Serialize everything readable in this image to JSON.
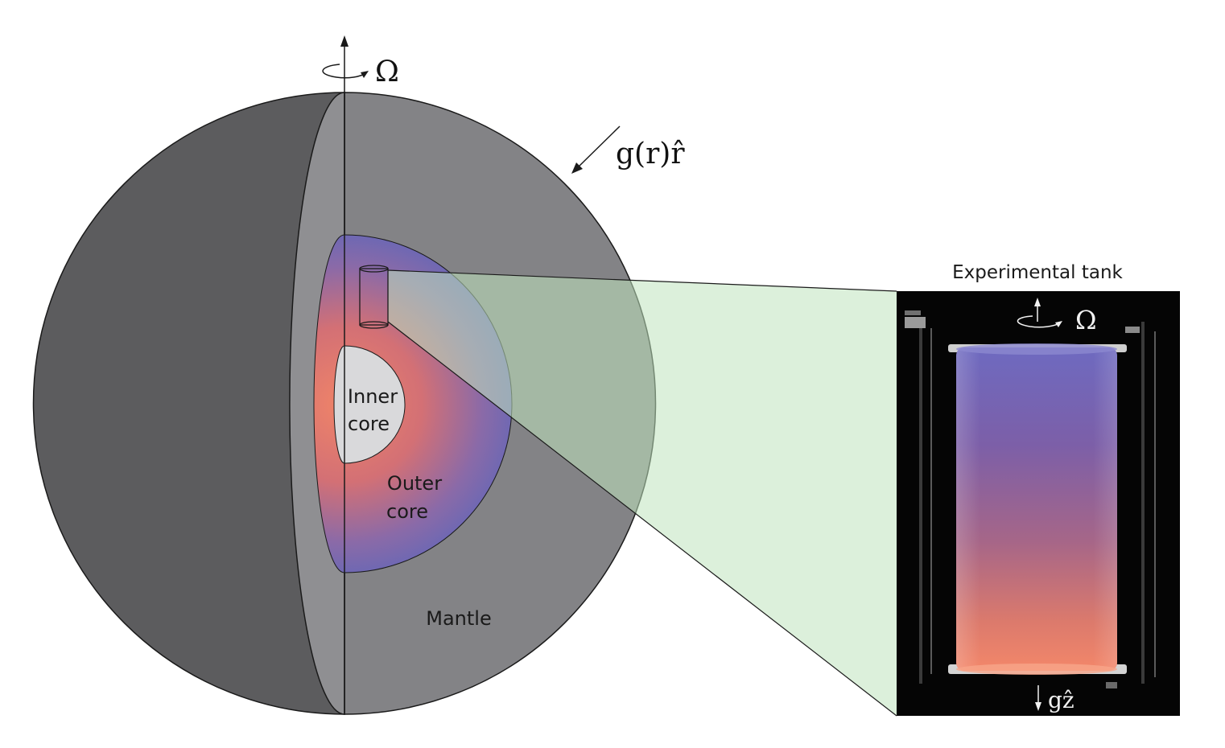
{
  "rotation_symbol": "Ω",
  "gravity_label": "g(r)r̂",
  "regions": {
    "inner_core": [
      "Inner",
      "core"
    ],
    "outer_core": [
      "Outer",
      "core"
    ],
    "mantle": "Mantle"
  },
  "tank": {
    "title": "Experimental tank",
    "rotation_symbol": "Ω",
    "gravity_label": "gẑ"
  },
  "colors": {
    "sphere_dark": "#5c5c5e",
    "sphere_light": "#838386",
    "cut_face": "#8f8f92",
    "zoom_wedge": "#bfe3bd",
    "core_blue": "#6b68b4",
    "core_red": "#e0776a",
    "inner_core": "#d9d9db"
  }
}
